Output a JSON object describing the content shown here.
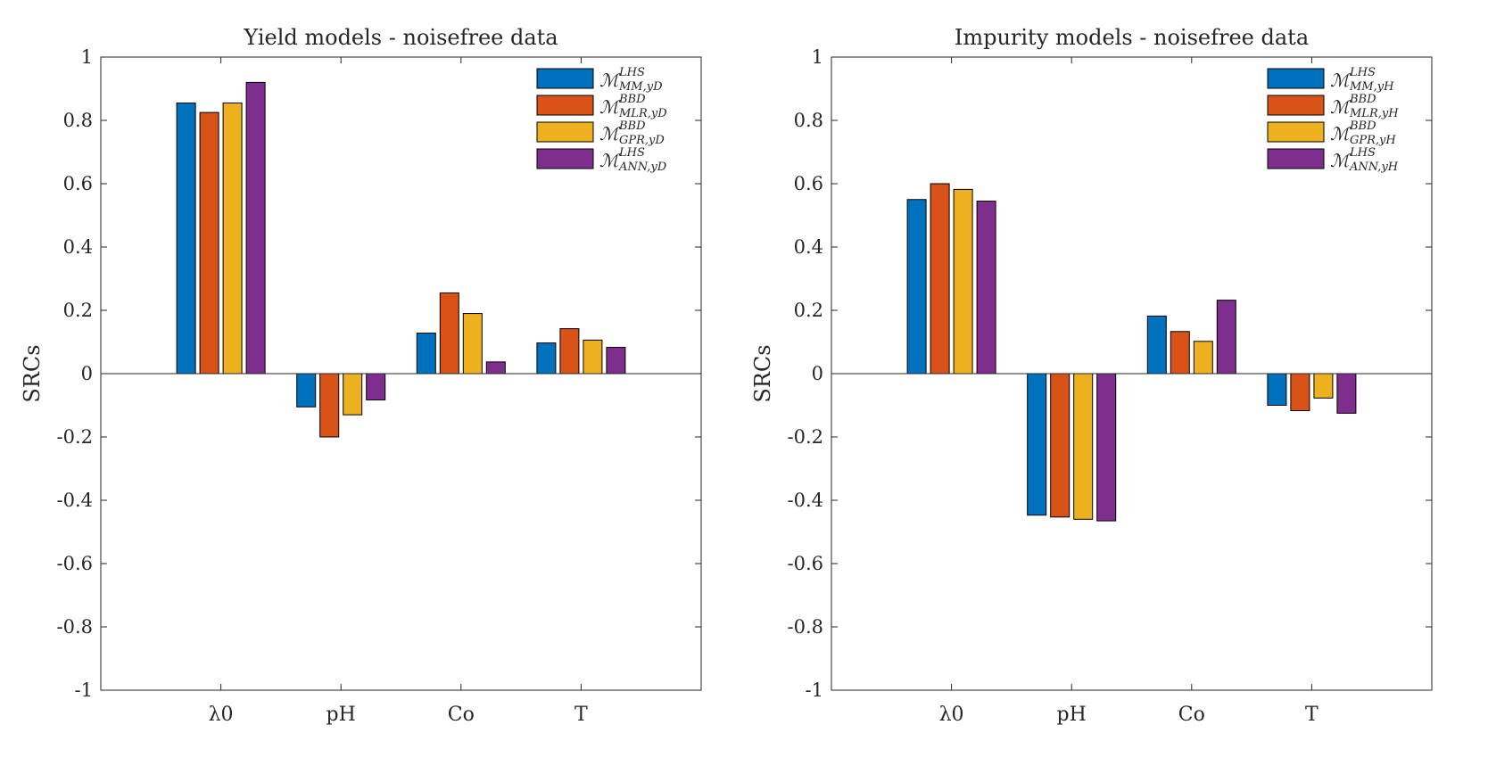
{
  "colors": [
    "#0072BD",
    "#D95319",
    "#EDB120",
    "#7E2F8E"
  ],
  "chart_data": [
    {
      "type": "bar",
      "title": "Yield models - noisefree data",
      "ylabel": "SRCs",
      "xlabel": "",
      "ylim": [
        -1,
        1
      ],
      "yticks": [
        "-1",
        "-0.8",
        "-0.6",
        "-0.4",
        "-0.2",
        "0",
        "0.2",
        "0.4",
        "0.6",
        "0.8",
        "1"
      ],
      "categories": [
        "λ0",
        "pH",
        "Co",
        "T"
      ],
      "legend_position": "top-right",
      "series": [
        {
          "name": "M^LHS_MM,yD",
          "base": "ℳ",
          "sup": "LHS",
          "sub": "MM,yD",
          "values": [
            0.855,
            -0.105,
            0.128,
            0.097
          ]
        },
        {
          "name": "M^BBD_MLR,yD",
          "base": "ℳ",
          "sup": "BBD",
          "sub": "MLR,yD",
          "values": [
            0.825,
            -0.2,
            0.255,
            0.142
          ]
        },
        {
          "name": "M^BBD_GPR,yD",
          "base": "ℳ",
          "sup": "BBD",
          "sub": "GPR,yD",
          "values": [
            0.855,
            -0.13,
            0.19,
            0.106
          ]
        },
        {
          "name": "M^LHS_ANN,yD",
          "base": "ℳ",
          "sup": "LHS",
          "sub": "ANN,yD",
          "values": [
            0.92,
            -0.083,
            0.037,
            0.083
          ]
        }
      ]
    },
    {
      "type": "bar",
      "title": "Impurity models - noisefree data",
      "ylabel": "SRCs",
      "xlabel": "",
      "ylim": [
        -1,
        1
      ],
      "yticks": [
        "-1",
        "-0.8",
        "-0.6",
        "-0.4",
        "-0.2",
        "0",
        "0.2",
        "0.4",
        "0.6",
        "0.8",
        "1"
      ],
      "categories": [
        "λ0",
        "pH",
        "Co",
        "T"
      ],
      "legend_position": "top-right",
      "series": [
        {
          "name": "M^LHS_MM,yH",
          "base": "ℳ",
          "sup": "LHS",
          "sub": "MM,yH",
          "values": [
            0.55,
            -0.447,
            0.182,
            -0.1
          ]
        },
        {
          "name": "M^BBD_MLR,yH",
          "base": "ℳ",
          "sup": "BBD",
          "sub": "MLR,yH",
          "values": [
            0.6,
            -0.453,
            0.133,
            -0.117
          ]
        },
        {
          "name": "M^BBD_GPR,yH",
          "base": "ℳ",
          "sup": "BBD",
          "sub": "GPR,yH",
          "values": [
            0.582,
            -0.46,
            0.102,
            -0.077
          ]
        },
        {
          "name": "M^LHS_ANN,yH",
          "base": "ℳ",
          "sup": "LHS",
          "sub": "ANN,yH",
          "values": [
            0.545,
            -0.465,
            0.232,
            -0.125
          ]
        }
      ]
    }
  ]
}
